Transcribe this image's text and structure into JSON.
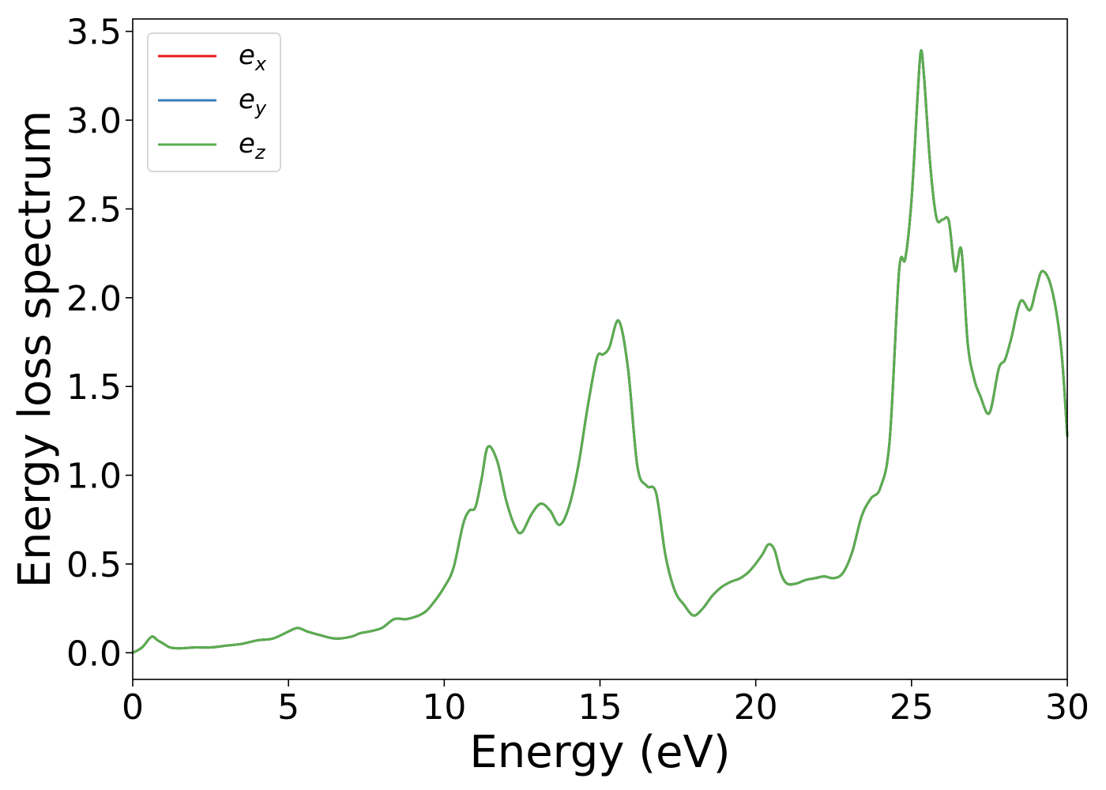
{
  "chart_data": {
    "type": "line",
    "title": "",
    "xlabel": "Energy (eV)",
    "ylabel": "Energy loss spectrum",
    "xlim": [
      0,
      30
    ],
    "ylim": [
      -0.15,
      3.57
    ],
    "xticks": [
      0,
      5,
      10,
      15,
      20,
      25,
      30
    ],
    "xtick_labels": [
      "0",
      "5",
      "10",
      "15",
      "20",
      "25",
      "30"
    ],
    "yticks": [
      0.0,
      0.5,
      1.0,
      1.5,
      2.0,
      2.5,
      3.0,
      3.5
    ],
    "ytick_labels": [
      "0.0",
      "0.5",
      "1.0",
      "1.5",
      "2.0",
      "2.5",
      "3.0",
      "3.5"
    ],
    "grid": false,
    "legend_position": "top-left",
    "x": [
      0,
      0.3,
      0.6,
      0.8,
      1.0,
      1.2,
      1.5,
      2.0,
      2.5,
      3.0,
      3.5,
      4.0,
      4.5,
      5.0,
      5.3,
      5.6,
      6.0,
      6.5,
      7.0,
      7.3,
      7.6,
      8.0,
      8.4,
      8.8,
      9.3,
      9.6,
      10.0,
      10.3,
      10.6,
      10.8,
      11.0,
      11.2,
      11.4,
      11.7,
      12.0,
      12.3,
      12.5,
      12.8,
      13.1,
      13.4,
      13.7,
      14.0,
      14.3,
      14.6,
      14.9,
      15.1,
      15.3,
      15.6,
      15.9,
      16.2,
      16.5,
      16.8,
      17.1,
      17.4,
      17.7,
      18.0,
      18.3,
      18.6,
      18.9,
      19.2,
      19.5,
      19.8,
      20.2,
      20.4,
      20.6,
      20.8,
      21.0,
      21.3,
      21.6,
      21.9,
      22.2,
      22.5,
      22.8,
      23.1,
      23.4,
      23.7,
      24.0,
      24.3,
      24.6,
      24.8,
      25.0,
      25.2,
      25.3,
      25.4,
      25.6,
      25.8,
      26.0,
      26.2,
      26.4,
      26.6,
      26.8,
      27.0,
      27.2,
      27.5,
      27.8,
      28.0,
      28.2,
      28.5,
      28.8,
      29.0,
      29.2,
      29.5,
      29.8,
      30.0
    ],
    "series": [
      {
        "name": "e_x",
        "color": "#e41a1c",
        "values": [
          0.0,
          0.03,
          0.09,
          0.07,
          0.05,
          0.03,
          0.025,
          0.03,
          0.03,
          0.04,
          0.05,
          0.07,
          0.08,
          0.12,
          0.14,
          0.12,
          0.1,
          0.08,
          0.09,
          0.11,
          0.12,
          0.14,
          0.19,
          0.19,
          0.22,
          0.27,
          0.37,
          0.48,
          0.72,
          0.8,
          0.82,
          0.98,
          1.16,
          1.08,
          0.85,
          0.7,
          0.68,
          0.78,
          0.84,
          0.8,
          0.72,
          0.82,
          1.05,
          1.38,
          1.66,
          1.68,
          1.72,
          1.87,
          1.6,
          1.05,
          0.94,
          0.9,
          0.55,
          0.35,
          0.27,
          0.21,
          0.25,
          0.32,
          0.37,
          0.4,
          0.42,
          0.46,
          0.55,
          0.61,
          0.58,
          0.45,
          0.39,
          0.39,
          0.41,
          0.42,
          0.43,
          0.42,
          0.45,
          0.57,
          0.77,
          0.87,
          0.93,
          1.2,
          2.15,
          2.22,
          2.55,
          3.15,
          3.39,
          3.25,
          2.75,
          2.45,
          2.44,
          2.43,
          2.15,
          2.27,
          1.75,
          1.55,
          1.45,
          1.35,
          1.6,
          1.65,
          1.77,
          1.98,
          1.93,
          2.05,
          2.15,
          2.05,
          1.72,
          1.22
        ]
      },
      {
        "name": "e_y",
        "color": "#377eb8",
        "values": [
          0.0,
          0.03,
          0.09,
          0.07,
          0.05,
          0.03,
          0.025,
          0.03,
          0.03,
          0.04,
          0.05,
          0.07,
          0.08,
          0.12,
          0.14,
          0.12,
          0.1,
          0.08,
          0.09,
          0.11,
          0.12,
          0.14,
          0.19,
          0.19,
          0.22,
          0.27,
          0.37,
          0.48,
          0.72,
          0.8,
          0.82,
          0.98,
          1.16,
          1.08,
          0.85,
          0.7,
          0.68,
          0.78,
          0.84,
          0.8,
          0.72,
          0.82,
          1.05,
          1.38,
          1.66,
          1.68,
          1.72,
          1.87,
          1.6,
          1.05,
          0.94,
          0.9,
          0.55,
          0.35,
          0.27,
          0.21,
          0.25,
          0.32,
          0.37,
          0.4,
          0.42,
          0.46,
          0.55,
          0.61,
          0.58,
          0.45,
          0.39,
          0.39,
          0.41,
          0.42,
          0.43,
          0.42,
          0.45,
          0.57,
          0.77,
          0.87,
          0.93,
          1.2,
          2.15,
          2.22,
          2.55,
          3.15,
          3.39,
          3.25,
          2.75,
          2.45,
          2.44,
          2.43,
          2.15,
          2.27,
          1.75,
          1.55,
          1.45,
          1.35,
          1.6,
          1.65,
          1.77,
          1.98,
          1.93,
          2.05,
          2.15,
          2.05,
          1.72,
          1.22
        ]
      },
      {
        "name": "e_z",
        "color": "#5aad4e",
        "values": [
          0.0,
          0.03,
          0.09,
          0.07,
          0.05,
          0.03,
          0.025,
          0.03,
          0.03,
          0.04,
          0.05,
          0.07,
          0.08,
          0.12,
          0.14,
          0.12,
          0.1,
          0.08,
          0.09,
          0.11,
          0.12,
          0.14,
          0.19,
          0.19,
          0.22,
          0.27,
          0.37,
          0.48,
          0.72,
          0.8,
          0.82,
          0.98,
          1.16,
          1.08,
          0.85,
          0.7,
          0.68,
          0.78,
          0.84,
          0.8,
          0.72,
          0.82,
          1.05,
          1.38,
          1.66,
          1.68,
          1.72,
          1.87,
          1.6,
          1.05,
          0.94,
          0.9,
          0.55,
          0.35,
          0.27,
          0.21,
          0.25,
          0.32,
          0.37,
          0.4,
          0.42,
          0.46,
          0.55,
          0.61,
          0.58,
          0.45,
          0.39,
          0.39,
          0.41,
          0.42,
          0.43,
          0.42,
          0.45,
          0.57,
          0.77,
          0.87,
          0.93,
          1.2,
          2.15,
          2.22,
          2.55,
          3.15,
          3.39,
          3.25,
          2.75,
          2.45,
          2.44,
          2.43,
          2.15,
          2.27,
          1.75,
          1.55,
          1.45,
          1.35,
          1.6,
          1.65,
          1.77,
          1.98,
          1.93,
          2.05,
          2.15,
          2.05,
          1.72,
          1.22
        ]
      }
    ],
    "legend": [
      {
        "base": "e",
        "sub": "x",
        "color": "#e41a1c"
      },
      {
        "base": "e",
        "sub": "y",
        "color": "#377eb8"
      },
      {
        "base": "e",
        "sub": "z",
        "color": "#5aad4e"
      }
    ]
  }
}
